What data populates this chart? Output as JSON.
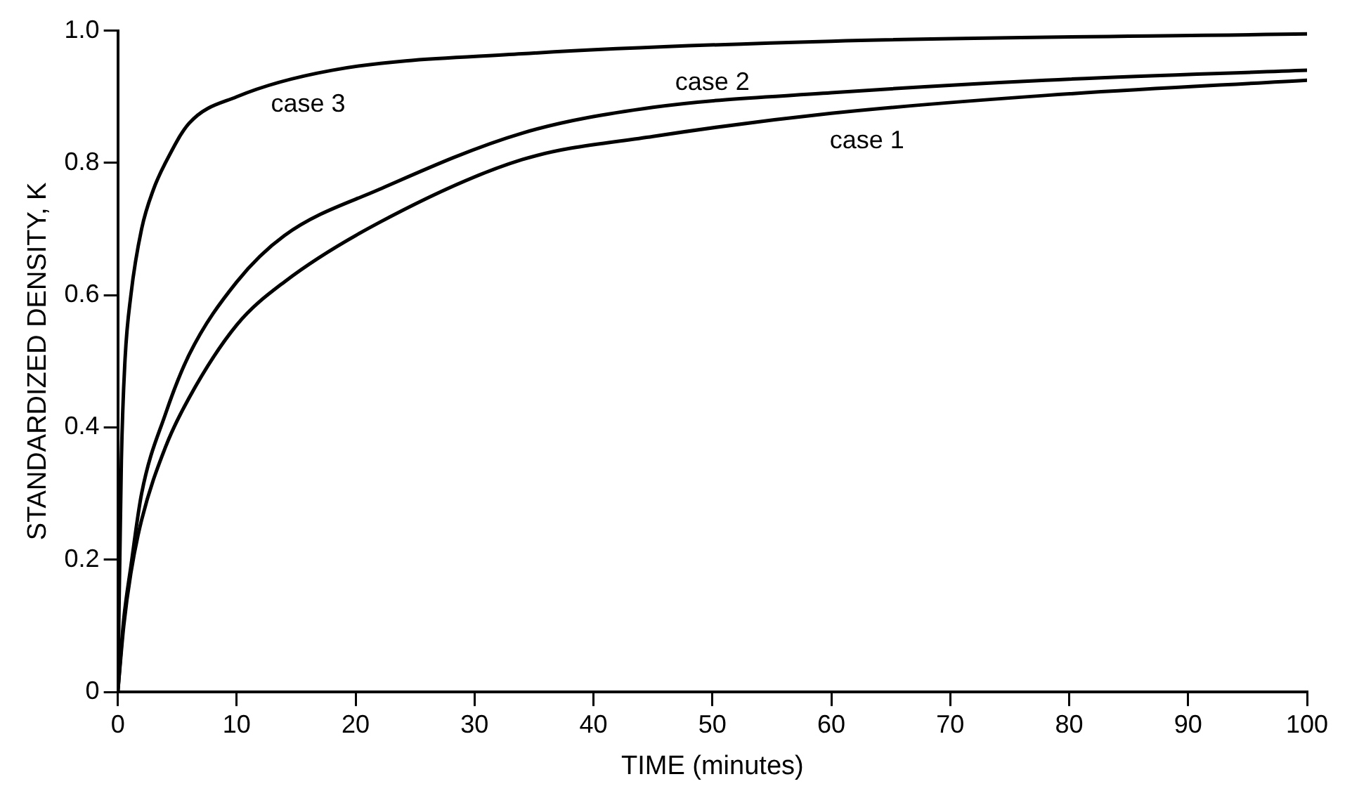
{
  "chart_data": {
    "type": "line",
    "xlabel": "TIME (minutes)",
    "ylabel": "STANDARDIZED DENSITY, K",
    "xlim": [
      0,
      100
    ],
    "xticks": [
      0,
      10,
      20,
      30,
      40,
      50,
      60,
      70,
      80,
      90,
      100
    ],
    "ylim": [
      0,
      1
    ],
    "yticks": [
      0,
      0.2,
      0.4,
      0.6,
      0.8,
      {
        "value": 1,
        "label": "1.0"
      }
    ],
    "grid": false,
    "legend": false,
    "marker": "none",
    "line_style": "solid",
    "series": [
      {
        "name": "case 1",
        "color": "#000000",
        "x": [
          0,
          0.5,
          1.1,
          2,
          4,
          6,
          10,
          14,
          22,
          34,
          45,
          60,
          78,
          100
        ],
        "values": [
          0,
          0.1,
          0.18,
          0.26,
          0.37,
          0.445,
          0.555,
          0.62,
          0.71,
          0.805,
          0.84,
          0.875,
          0.902,
          0.925
        ]
      },
      {
        "name": "case 2",
        "color": "#000000",
        "x": [
          0,
          0.5,
          1.1,
          2,
          4,
          6,
          10,
          14,
          22,
          34,
          45,
          60,
          78,
          100
        ],
        "values": [
          0,
          0.11,
          0.19,
          0.3,
          0.42,
          0.51,
          0.62,
          0.69,
          0.76,
          0.845,
          0.884,
          0.906,
          0.925,
          0.94
        ]
      },
      {
        "name": "case 3",
        "color": "#000000",
        "x": [
          0,
          0.3,
          0.6,
          1.1,
          2,
          3,
          4,
          6,
          10,
          18,
          34,
          60,
          100
        ],
        "values": [
          0,
          0.35,
          0.5,
          0.6,
          0.7,
          0.76,
          0.8,
          0.86,
          0.9,
          0.94,
          0.965,
          0.984,
          0.995
        ]
      }
    ]
  }
}
